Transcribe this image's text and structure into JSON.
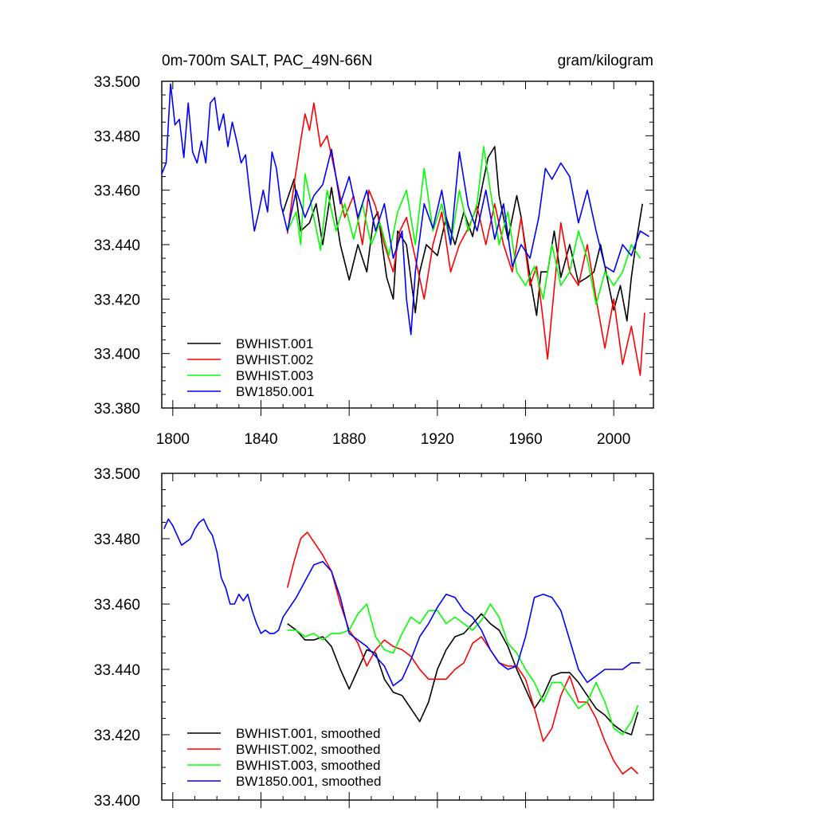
{
  "chart_data": [
    {
      "type": "line",
      "title_left": "0m-700m SALT, PAC_49N-66N",
      "title_right": "gram/kilogram",
      "xlim": [
        1795,
        2018
      ],
      "ylim": [
        33.38,
        33.5
      ],
      "xticks": [
        "1800",
        "1840",
        "1880",
        "1920",
        "1960",
        "2000"
      ],
      "yticks": [
        "33.500",
        "33.480",
        "33.460",
        "33.440",
        "33.420",
        "33.400",
        "33.380"
      ],
      "legend": [
        "BWHIST.001",
        "BWHIST.002",
        "BWHIST.003",
        "BW1850.001"
      ],
      "series": [
        {
          "name": "BWHIST.001",
          "color": "#000000",
          "x": [
            1850,
            1855,
            1858,
            1862,
            1865,
            1868,
            1872,
            1876,
            1880,
            1884,
            1888,
            1891,
            1893,
            1897,
            1900,
            1902,
            1906,
            1910,
            1912,
            1915,
            1920,
            1924,
            1928,
            1932,
            1936,
            1940,
            1943,
            1946,
            1948,
            1952,
            1956,
            1958,
            1962,
            1965,
            1967,
            1970,
            1973,
            1976,
            1980,
            1984,
            1988,
            1991,
            1994,
            1996,
            2000,
            2003,
            2006,
            2008,
            2010,
            2013
          ],
          "y": [
            33.452,
            33.464,
            33.445,
            33.448,
            33.455,
            33.44,
            33.461,
            33.44,
            33.427,
            33.44,
            33.43,
            33.449,
            33.452,
            33.428,
            33.42,
            33.445,
            33.44,
            33.415,
            33.43,
            33.44,
            33.436,
            33.45,
            33.44,
            33.452,
            33.443,
            33.46,
            33.472,
            33.476,
            33.458,
            33.442,
            33.458,
            33.45,
            33.428,
            33.414,
            33.43,
            33.43,
            33.445,
            33.428,
            33.44,
            33.426,
            33.428,
            33.43,
            33.44,
            33.432,
            33.416,
            33.425,
            33.412,
            33.428,
            33.44,
            33.455
          ]
        },
        {
          "name": "BWHIST.002",
          "color": "#ff0000",
          "x": [
            1852,
            1855,
            1858,
            1860,
            1862,
            1864,
            1867,
            1870,
            1874,
            1878,
            1882,
            1886,
            1889,
            1892,
            1896,
            1900,
            1903,
            1906,
            1910,
            1914,
            1918,
            1922,
            1926,
            1930,
            1934,
            1938,
            1942,
            1946,
            1950,
            1954,
            1958,
            1962,
            1965,
            1968,
            1970,
            1973,
            1976,
            1980,
            1984,
            1988,
            1992,
            1996,
            2000,
            2004,
            2008,
            2012,
            2014
          ],
          "y": [
            33.444,
            33.462,
            33.478,
            33.488,
            33.482,
            33.492,
            33.476,
            33.48,
            33.465,
            33.45,
            33.458,
            33.44,
            33.46,
            33.454,
            33.44,
            33.43,
            33.445,
            33.45,
            33.435,
            33.42,
            33.44,
            33.452,
            33.43,
            33.44,
            33.446,
            33.454,
            33.44,
            33.455,
            33.44,
            33.43,
            33.45,
            33.425,
            33.432,
            33.412,
            33.398,
            33.424,
            33.448,
            33.43,
            33.425,
            33.44,
            33.42,
            33.402,
            33.42,
            33.396,
            33.41,
            33.392,
            33.415
          ]
        },
        {
          "name": "BWHIST.003",
          "color": "#00ff00",
          "x": [
            1852,
            1856,
            1858,
            1860,
            1864,
            1867,
            1870,
            1874,
            1878,
            1882,
            1886,
            1890,
            1894,
            1898,
            1902,
            1906,
            1910,
            1914,
            1918,
            1922,
            1926,
            1930,
            1934,
            1938,
            1941,
            1944,
            1948,
            1952,
            1956,
            1960,
            1964,
            1968,
            1972,
            1976,
            1980,
            1984,
            1988,
            1992,
            1996,
            2000,
            2004,
            2008,
            2012
          ],
          "y": [
            33.445,
            33.452,
            33.44,
            33.466,
            33.45,
            33.438,
            33.46,
            33.445,
            33.455,
            33.442,
            33.455,
            33.44,
            33.448,
            33.436,
            33.452,
            33.46,
            33.44,
            33.468,
            33.445,
            33.455,
            33.44,
            33.46,
            33.445,
            33.455,
            33.476,
            33.46,
            33.44,
            33.452,
            33.43,
            33.425,
            33.432,
            33.42,
            33.44,
            33.425,
            33.43,
            33.445,
            33.435,
            33.418,
            33.43,
            33.425,
            33.43,
            33.44,
            33.435
          ]
        },
        {
          "name": "BW1850.001",
          "color": "#0000ff",
          "x": [
            1795,
            1797,
            1799,
            1801,
            1803,
            1805,
            1807,
            1809,
            1811,
            1813,
            1815,
            1817,
            1819,
            1821,
            1823,
            1825,
            1827,
            1829,
            1831,
            1833,
            1835,
            1837,
            1839,
            1841,
            1843,
            1845,
            1847,
            1849,
            1852,
            1856,
            1860,
            1864,
            1868,
            1872,
            1876,
            1880,
            1884,
            1888,
            1892,
            1896,
            1900,
            1904,
            1906,
            1908,
            1910,
            1914,
            1918,
            1922,
            1926,
            1930,
            1934,
            1938,
            1942,
            1946,
            1950,
            1954,
            1958,
            1962,
            1966,
            1969,
            1972,
            1976,
            1980,
            1984,
            1988,
            1992,
            1996,
            2000,
            2004,
            2008,
            2012,
            2016
          ],
          "y": [
            33.466,
            33.47,
            33.499,
            33.484,
            33.486,
            33.472,
            33.492,
            33.474,
            33.47,
            33.478,
            33.47,
            33.492,
            33.494,
            33.482,
            33.488,
            33.476,
            33.485,
            33.478,
            33.47,
            33.473,
            33.458,
            33.445,
            33.452,
            33.46,
            33.452,
            33.474,
            33.468,
            33.455,
            33.445,
            33.46,
            33.45,
            33.458,
            33.462,
            33.475,
            33.455,
            33.465,
            33.45,
            33.46,
            33.445,
            33.455,
            33.435,
            33.445,
            33.42,
            33.407,
            33.43,
            33.455,
            33.446,
            33.46,
            33.44,
            33.474,
            33.454,
            33.445,
            33.46,
            33.442,
            33.455,
            33.432,
            33.44,
            33.435,
            33.45,
            33.468,
            33.464,
            33.47,
            33.465,
            33.448,
            33.46,
            33.445,
            33.432,
            33.43,
            33.44,
            33.436,
            33.445,
            33.443
          ]
        }
      ]
    },
    {
      "type": "line",
      "xlim": [
        1795,
        2018
      ],
      "ylim": [
        33.4,
        33.5
      ],
      "yticks": [
        "33.500",
        "33.480",
        "33.460",
        "33.440",
        "33.420",
        "33.400"
      ],
      "legend": [
        "BWHIST.001, smoothed",
        "BWHIST.002, smoothed",
        "BWHIST.003, smoothed",
        "BW1850.001, smoothed"
      ],
      "series": [
        {
          "name": "BWHIST.001, smoothed",
          "color": "#000000",
          "x": [
            1852,
            1856,
            1860,
            1864,
            1868,
            1872,
            1876,
            1880,
            1884,
            1888,
            1892,
            1896,
            1900,
            1904,
            1908,
            1912,
            1916,
            1920,
            1924,
            1928,
            1932,
            1936,
            1940,
            1944,
            1948,
            1952,
            1956,
            1960,
            1964,
            1968,
            1972,
            1976,
            1980,
            1984,
            1988,
            1992,
            1996,
            2000,
            2004,
            2008,
            2011
          ],
          "y": [
            33.454,
            33.452,
            33.449,
            33.449,
            33.45,
            33.447,
            33.44,
            33.434,
            33.44,
            33.446,
            33.445,
            33.437,
            33.433,
            33.432,
            33.428,
            33.424,
            33.43,
            33.44,
            33.446,
            33.45,
            33.451,
            33.454,
            33.457,
            33.454,
            33.452,
            33.447,
            33.44,
            33.434,
            33.428,
            33.432,
            33.438,
            33.439,
            33.439,
            33.436,
            33.432,
            33.428,
            33.426,
            33.423,
            33.421,
            33.42,
            33.427
          ]
        },
        {
          "name": "BWHIST.002, smoothed",
          "color": "#ff0000",
          "x": [
            1852,
            1855,
            1858,
            1861,
            1864,
            1868,
            1872,
            1876,
            1880,
            1884,
            1888,
            1892,
            1896,
            1900,
            1904,
            1908,
            1912,
            1916,
            1920,
            1924,
            1928,
            1932,
            1936,
            1940,
            1944,
            1948,
            1952,
            1956,
            1960,
            1964,
            1968,
            1972,
            1976,
            1980,
            1984,
            1988,
            1992,
            1996,
            2000,
            2004,
            2008,
            2011
          ],
          "y": [
            33.465,
            33.473,
            33.48,
            33.482,
            33.479,
            33.475,
            33.47,
            33.46,
            33.452,
            33.448,
            33.441,
            33.446,
            33.449,
            33.447,
            33.446,
            33.444,
            33.44,
            33.437,
            33.437,
            33.437,
            33.44,
            33.442,
            33.448,
            33.45,
            33.446,
            33.442,
            33.441,
            33.441,
            33.437,
            33.428,
            33.418,
            33.422,
            33.432,
            33.438,
            33.43,
            33.43,
            33.425,
            33.418,
            33.412,
            33.408,
            33.41,
            33.408
          ]
        },
        {
          "name": "BWHIST.003, smoothed",
          "color": "#00ff00",
          "x": [
            1852,
            1856,
            1860,
            1864,
            1868,
            1872,
            1876,
            1880,
            1884,
            1888,
            1892,
            1896,
            1900,
            1904,
            1908,
            1912,
            1916,
            1920,
            1924,
            1928,
            1932,
            1936,
            1940,
            1944,
            1948,
            1952,
            1956,
            1960,
            1964,
            1968,
            1972,
            1976,
            1980,
            1984,
            1988,
            1992,
            1996,
            2000,
            2004,
            2008,
            2011
          ],
          "y": [
            33.452,
            33.452,
            33.45,
            33.451,
            33.449,
            33.451,
            33.451,
            33.452,
            33.457,
            33.46,
            33.45,
            33.446,
            33.445,
            33.451,
            33.456,
            33.454,
            33.458,
            33.458,
            33.454,
            33.456,
            33.454,
            33.452,
            33.455,
            33.46,
            33.456,
            33.448,
            33.445,
            33.44,
            33.436,
            33.43,
            33.436,
            33.436,
            33.432,
            33.428,
            33.43,
            33.436,
            33.43,
            33.422,
            33.42,
            33.424,
            33.429
          ]
        },
        {
          "name": "BW1850.001, smoothed",
          "color": "#0000ff",
          "x": [
            1796,
            1798,
            1800,
            1802,
            1804,
            1806,
            1808,
            1810,
            1812,
            1814,
            1816,
            1818,
            1820,
            1822,
            1824,
            1826,
            1828,
            1830,
            1832,
            1834,
            1836,
            1838,
            1840,
            1842,
            1844,
            1846,
            1848,
            1850,
            1852,
            1856,
            1860,
            1864,
            1868,
            1872,
            1876,
            1880,
            1884,
            1888,
            1892,
            1896,
            1900,
            1904,
            1908,
            1912,
            1916,
            1920,
            1924,
            1928,
            1932,
            1936,
            1940,
            1944,
            1948,
            1952,
            1956,
            1960,
            1964,
            1968,
            1972,
            1976,
            1980,
            1984,
            1988,
            1992,
            1996,
            2000,
            2004,
            2008,
            2012
          ],
          "y": [
            33.483,
            33.486,
            33.484,
            33.481,
            33.478,
            33.479,
            33.48,
            33.483,
            33.485,
            33.486,
            33.483,
            33.481,
            33.476,
            33.468,
            33.465,
            33.46,
            33.46,
            33.463,
            33.461,
            33.463,
            33.458,
            33.454,
            33.451,
            33.452,
            33.451,
            33.451,
            33.452,
            33.456,
            33.458,
            33.462,
            33.467,
            33.472,
            33.473,
            33.47,
            33.462,
            33.451,
            33.449,
            33.447,
            33.444,
            33.441,
            33.435,
            33.437,
            33.443,
            33.45,
            33.454,
            33.459,
            33.463,
            33.462,
            33.458,
            33.456,
            33.452,
            33.446,
            33.442,
            33.44,
            33.441,
            33.45,
            33.462,
            33.463,
            33.462,
            33.458,
            33.449,
            33.44,
            33.436,
            33.438,
            33.44,
            33.44,
            33.44,
            33.442,
            33.442
          ]
        }
      ]
    }
  ]
}
